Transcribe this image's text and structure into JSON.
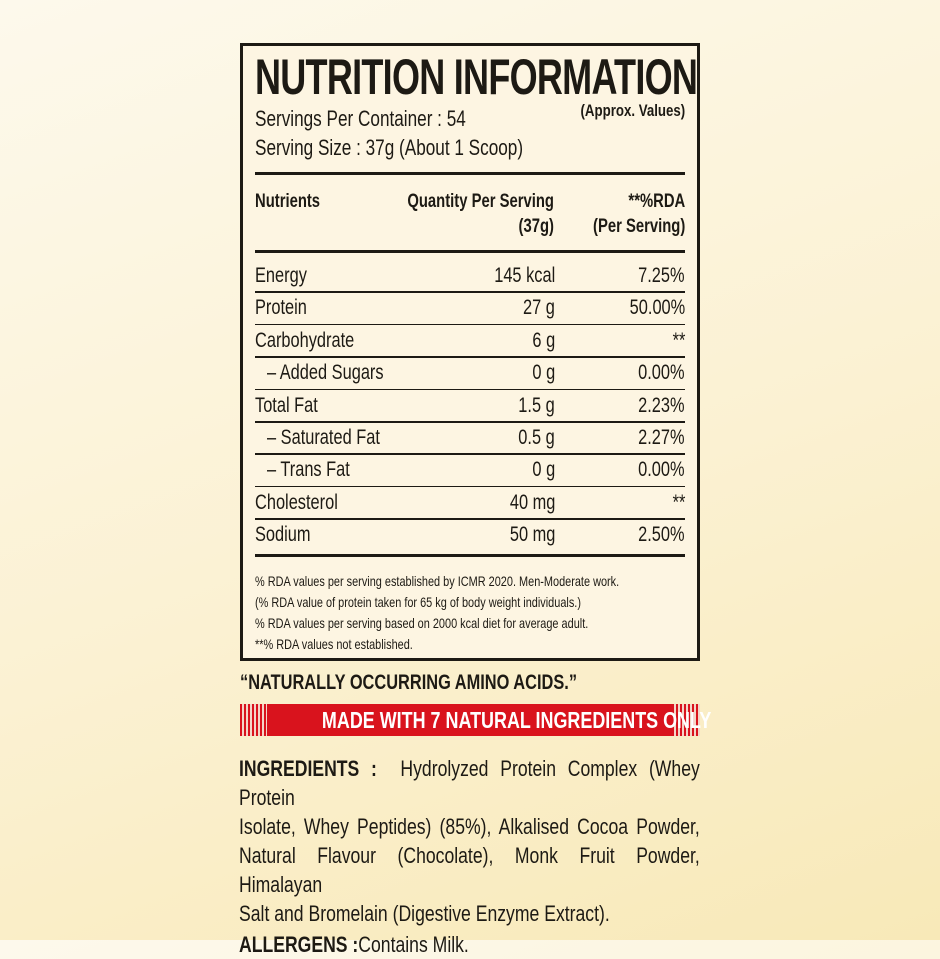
{
  "panel": {
    "title": "NUTRITION INFORMATION",
    "approx": "(Approx. Values)",
    "servings_per_container": "Servings Per Container : 54",
    "serving_size": "Serving Size : 37g (About 1 Scoop)",
    "headers": {
      "nutrients": "Nutrients",
      "qty_line1": "Quantity Per Serving",
      "qty_line2": "(37g)",
      "rda_line1": "**%RDA",
      "rda_line2": "(Per Serving)"
    },
    "rows": [
      {
        "name": "Energy",
        "qty": "145 kcal",
        "rda": "7.25%"
      },
      {
        "name": "Protein",
        "qty": "27 g",
        "rda": "50.00%"
      },
      {
        "name": "Carbohydrate",
        "qty": "6 g",
        "rda": "**"
      },
      {
        "name": "– Added Sugars",
        "qty": "0 g",
        "rda": "0.00%"
      },
      {
        "name": "Total Fat",
        "qty": "1.5 g",
        "rda": "2.23%"
      },
      {
        "name": "– Saturated Fat",
        "qty": "0.5 g",
        "rda": "2.27%"
      },
      {
        "name": "– Trans Fat",
        "qty": "0 g",
        "rda": "0.00%"
      },
      {
        "name": "Cholesterol",
        "qty": "40 mg",
        "rda": "**"
      },
      {
        "name": "Sodium",
        "qty": "50 mg",
        "rda": "2.50%"
      }
    ],
    "footnotes": [
      "% RDA values per serving established by ICMR 2020. Men-Moderate work.",
      "(% RDA value of protein taken for 65 kg of body weight individuals.)",
      "% RDA values per serving based on 2000 kcal diet for average adult.",
      "**% RDA values not established."
    ]
  },
  "amino": "“NATURALLY OCCURRING AMINO ACIDS.”",
  "banner": "MADE WITH 7 NATURAL INGREDIENTS ONLY",
  "banner_color": "#d9131d",
  "ingredients": {
    "label": "INGREDIENTS :",
    "lines": [
      "Hydrolyzed Protein Complex (Whey Protein",
      "Isolate, Whey Peptides) (85%), Alkalised Cocoa Powder,",
      "Natural Flavour (Chocolate), Monk Fruit Powder, Himalayan",
      "Salt and Bromelain (Digestive Enzyme Extract)."
    ]
  },
  "allergens": {
    "label": "ALLERGENS :",
    "text": "Contains Milk."
  }
}
